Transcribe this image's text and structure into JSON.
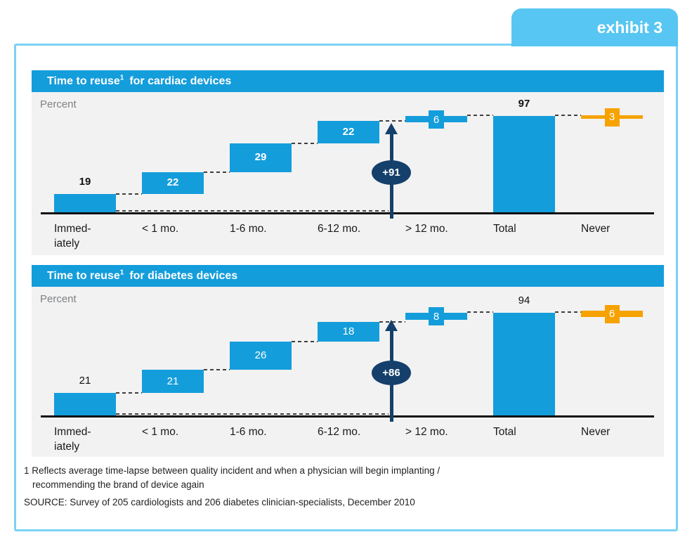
{
  "exhibit_badge": "exhibit 3",
  "colors": {
    "primary_blue": "#149DDB",
    "tab_blue": "#57C6F2",
    "frame_blue": "#7CD2F4",
    "panel_bg": "#F2F2F2",
    "accent_orange": "#F6A200",
    "navy": "#14406B",
    "unit_label_gray": "#808285"
  },
  "charts": [
    {
      "title_main": "Time to reuse",
      "title_sup": "1",
      "title_rest": "for cardiac devices",
      "unit_label": "Percent",
      "chart_data": {
        "type": "bar",
        "subtype": "waterfall",
        "title": "Time to reuse for cardiac devices",
        "ylabel": "Percent",
        "ylim": [
          0,
          100
        ],
        "categories": [
          "Immed-\niately",
          "< 1 mo.",
          "1-6 mo.",
          "6-12 mo.",
          "> 12 mo.",
          "Total",
          "Never"
        ],
        "values": [
          19,
          22,
          29,
          22,
          6,
          97,
          3
        ],
        "roles": [
          "first",
          "step",
          "step",
          "step",
          "thin",
          "total",
          "never"
        ],
        "arrow_label": "+91",
        "bold_value_labels": true
      }
    },
    {
      "title_main": "Time to reuse",
      "title_sup": "1",
      "title_rest": "for diabetes devices",
      "unit_label": "Percent",
      "chart_data": {
        "type": "bar",
        "subtype": "waterfall",
        "title": "Time to reuse for diabetes devices",
        "ylabel": "Percent",
        "ylim": [
          0,
          100
        ],
        "categories": [
          "Immed-\niately",
          "< 1 mo.",
          "1-6 mo.",
          "6-12 mo.",
          "> 12 mo.",
          "Total",
          "Never"
        ],
        "values": [
          21,
          21,
          26,
          18,
          8,
          94,
          6
        ],
        "roles": [
          "first",
          "step",
          "step",
          "step",
          "thin",
          "total",
          "never"
        ],
        "arrow_label": "+86",
        "bold_value_labels": false
      }
    }
  ],
  "footnote": {
    "line1": "1 Reflects average time-lapse between quality incident and when a physician will begin implanting /",
    "line2": "recommending the brand of device again"
  },
  "source": "SOURCE: Survey of 205 cardiologists and 206 diabetes clinician-specialists, December 2010"
}
